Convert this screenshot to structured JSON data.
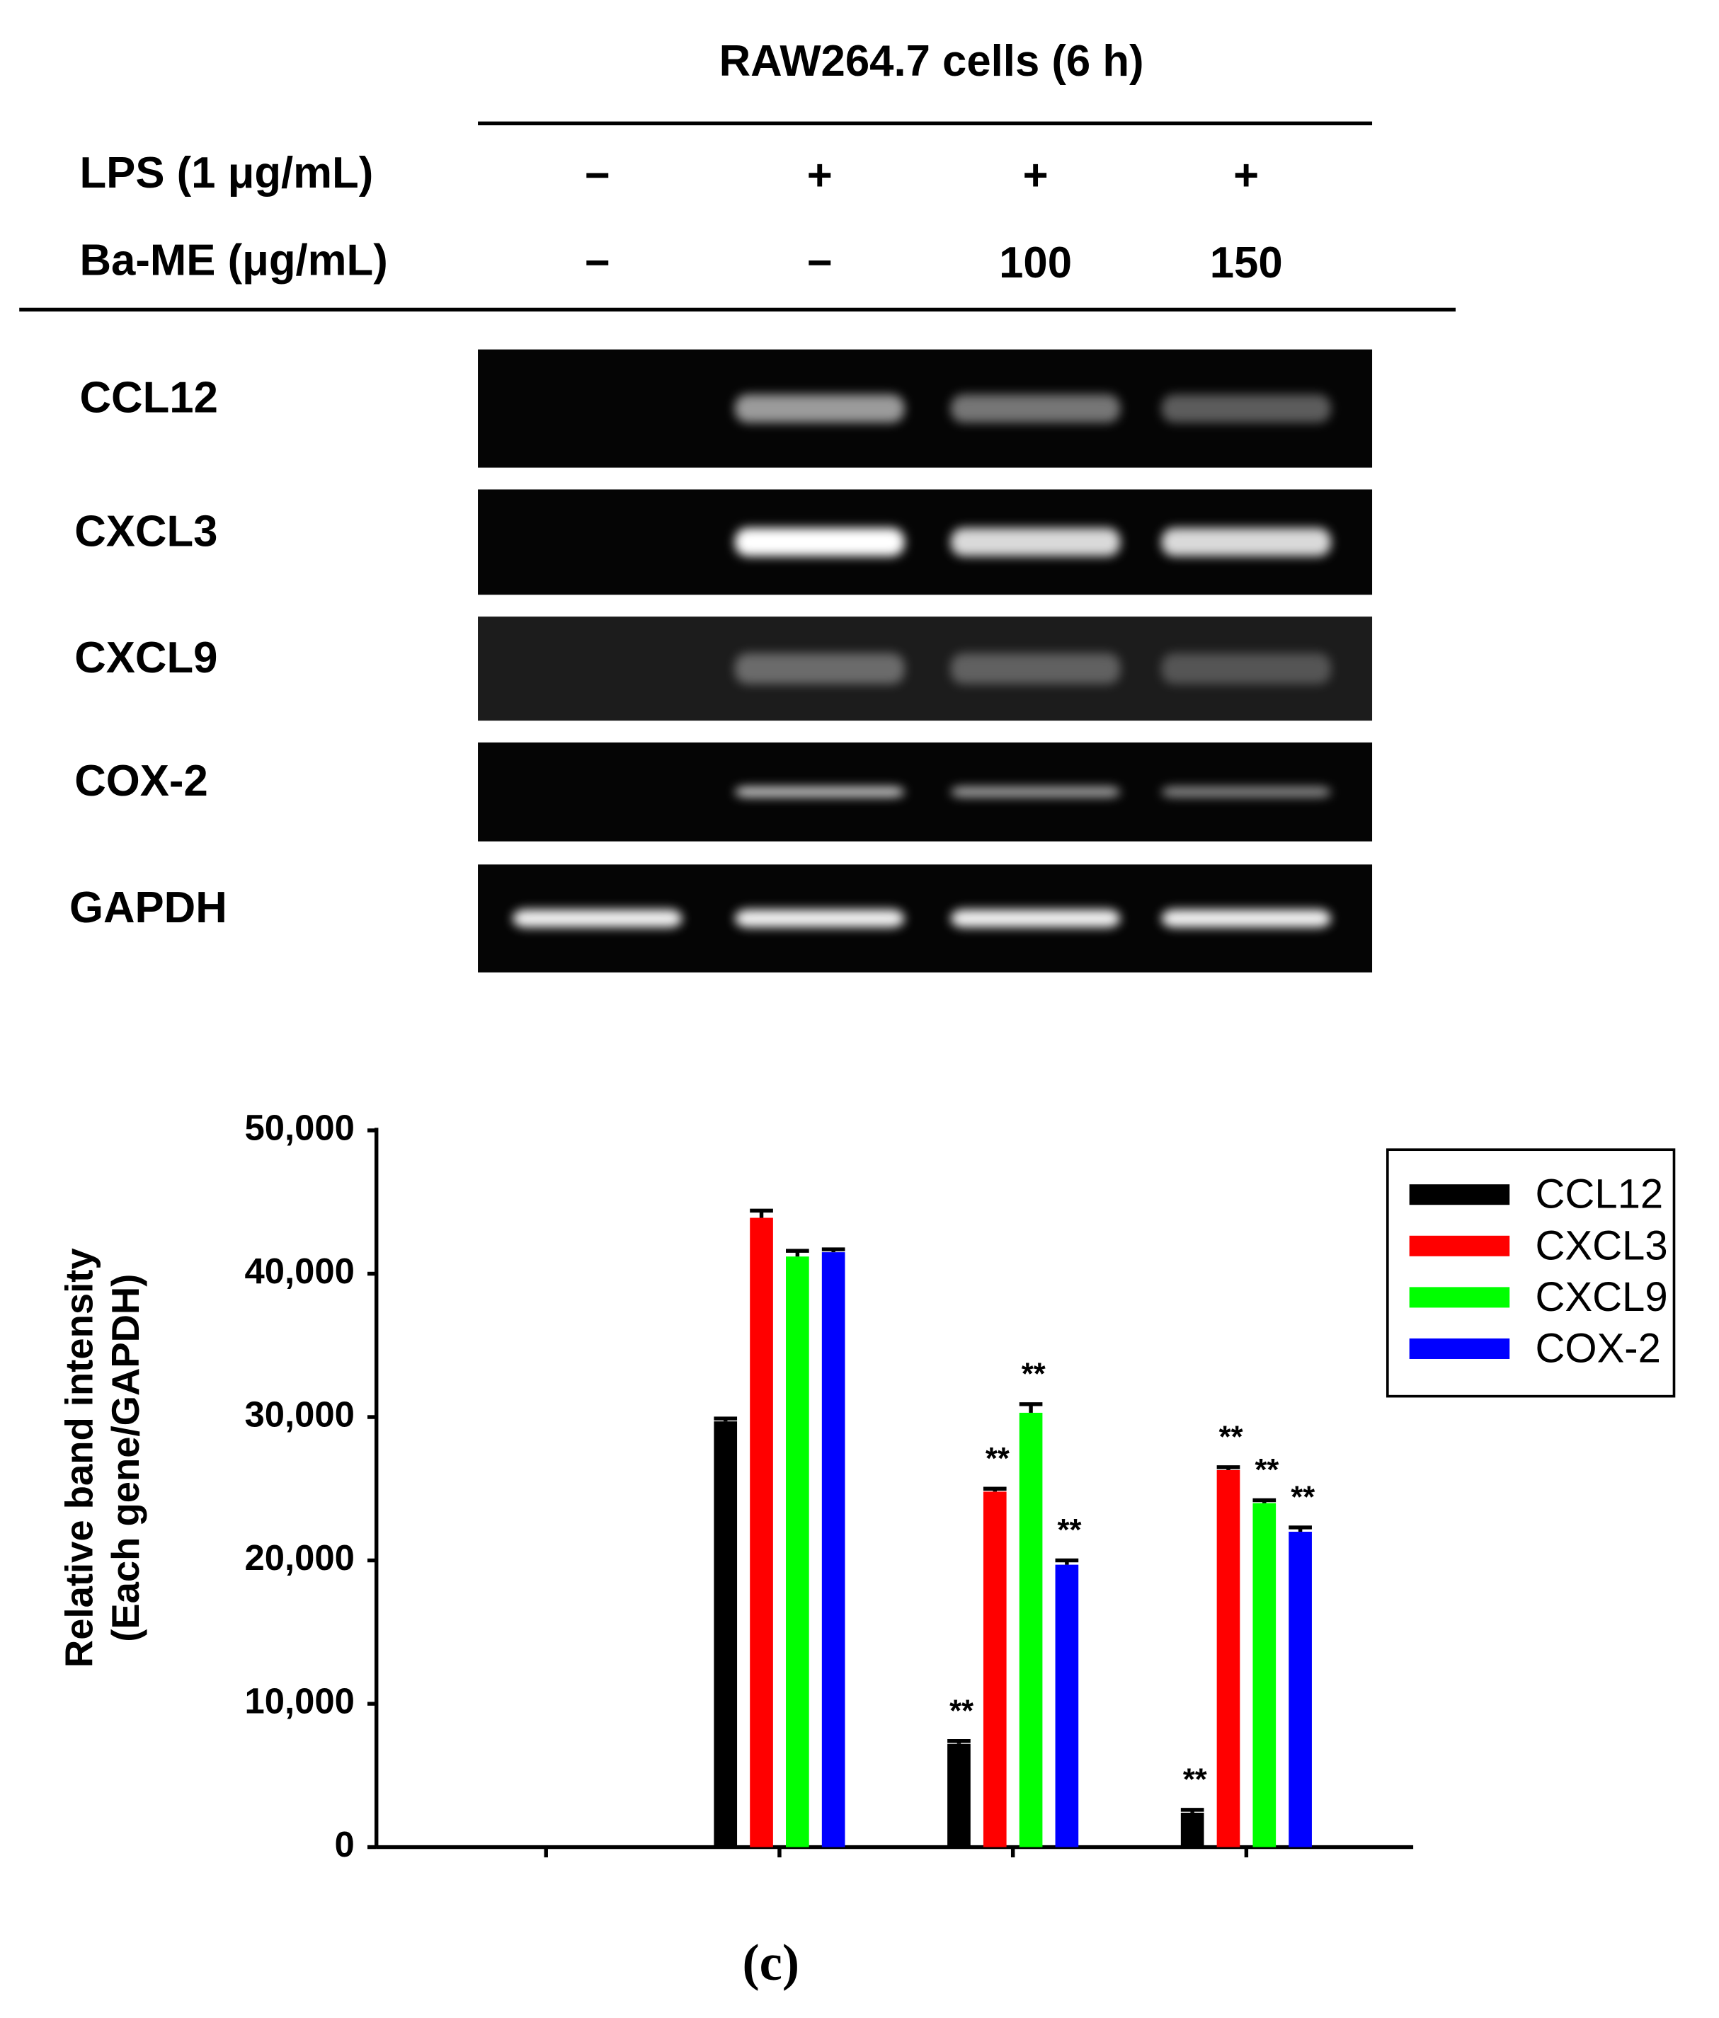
{
  "gel": {
    "title": "RAW264.7 cells (6 h)",
    "conditions": [
      {
        "label": "LPS (1 μg/mL)",
        "lanes": [
          "−",
          "+",
          "+",
          "+"
        ]
      },
      {
        "label": "Ba-ME (μg/mL)",
        "lanes": [
          "−",
          "−",
          "100",
          "150"
        ]
      }
    ],
    "genes": [
      "CCL12",
      "CXCL3",
      "CXCL9",
      "COX-2",
      "GAPDH"
    ]
  },
  "chart_data": {
    "type": "bar",
    "ylabel": [
      "Relative band intensity",
      "(Each gene/GAPDH)"
    ],
    "categories": [
      null,
      null,
      null,
      null
    ],
    "series": [
      {
        "name": "CCL12",
        "color": "#000000",
        "values": [
          0,
          29700,
          7200,
          2400
        ],
        "errors": [
          0,
          200,
          200,
          200
        ],
        "significance": [
          null,
          null,
          "**",
          "**"
        ]
      },
      {
        "name": "CXCL3",
        "color": "#ff0000",
        "values": [
          0,
          43900,
          24800,
          26300
        ],
        "errors": [
          0,
          500,
          200,
          200
        ],
        "significance": [
          null,
          null,
          "**",
          "**"
        ]
      },
      {
        "name": "CXCL9",
        "color": "#00ff00",
        "values": [
          0,
          41200,
          30300,
          24000
        ],
        "errors": [
          0,
          400,
          600,
          200
        ],
        "significance": [
          null,
          null,
          "**",
          "**"
        ]
      },
      {
        "name": "COX-2",
        "color": "#0000ff",
        "values": [
          0,
          41500,
          19700,
          22000
        ],
        "errors": [
          0,
          200,
          300,
          300
        ],
        "significance": [
          null,
          null,
          "**",
          "**"
        ]
      }
    ],
    "ylim": [
      0,
      50000
    ],
    "yticks": [
      0,
      {
        "value": 10000,
        "label": "10,000"
      },
      {
        "value": 20000,
        "label": "20,000"
      },
      {
        "value": 30000,
        "label": "30,000"
      },
      {
        "value": 40000,
        "label": "40,000"
      },
      {
        "value": 50000,
        "label": "50,000"
      }
    ],
    "legend": "upper right"
  },
  "panel_label": "(c)"
}
